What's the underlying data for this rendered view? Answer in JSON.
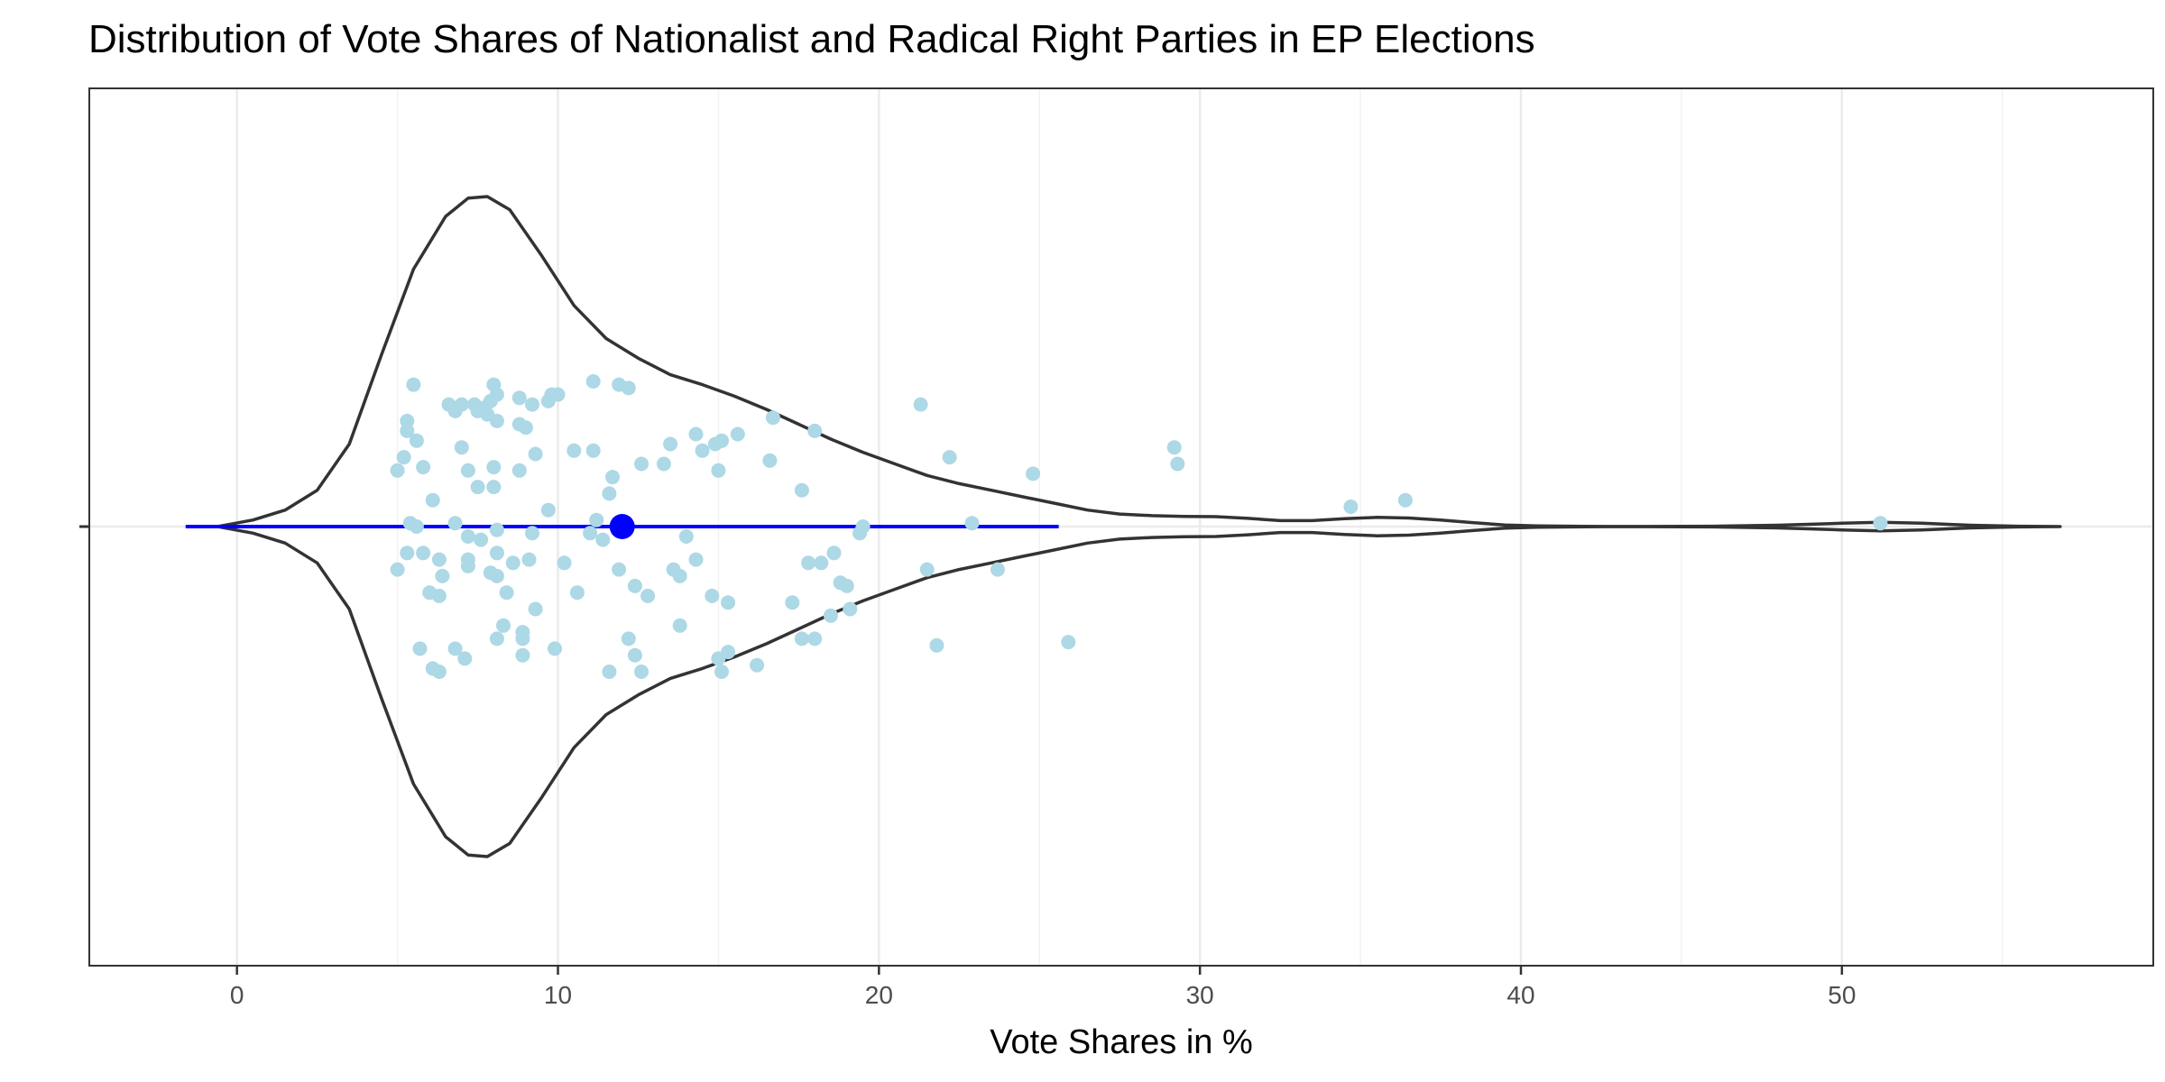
{
  "chart_data": {
    "type": "violin",
    "title": "Distribution of Vote Shares of Nationalist and Radical Right Parties in EP Elections",
    "xlabel": "Vote Shares in %",
    "ylabel": "",
    "xlim": [
      -4.6,
      59.7
    ],
    "x_ticks": [
      0,
      10,
      20,
      30,
      40,
      50
    ],
    "grid": true,
    "colors": {
      "points": "#add8e6",
      "summary": "#0000ff",
      "violin_outline": "#333333",
      "panel_border": "#333333",
      "grid_major": "#ebebeb"
    },
    "summary": {
      "mean": 12.0,
      "interval": [
        -1.6,
        25.6
      ]
    },
    "violin_density": [
      [
        -0.6,
        0.0
      ],
      [
        0.5,
        0.02
      ],
      [
        1.5,
        0.05
      ],
      [
        2.5,
        0.11
      ],
      [
        3.5,
        0.25
      ],
      [
        4.5,
        0.52
      ],
      [
        5.5,
        0.78
      ],
      [
        6.5,
        0.94
      ],
      [
        7.2,
        0.995
      ],
      [
        7.8,
        1.0
      ],
      [
        8.5,
        0.96
      ],
      [
        9.5,
        0.82
      ],
      [
        10.5,
        0.67
      ],
      [
        11.5,
        0.57
      ],
      [
        12.5,
        0.51
      ],
      [
        13.5,
        0.46
      ],
      [
        14.5,
        0.43
      ],
      [
        15.5,
        0.395
      ],
      [
        16.5,
        0.355
      ],
      [
        17.5,
        0.31
      ],
      [
        18.5,
        0.265
      ],
      [
        19.5,
        0.225
      ],
      [
        20.5,
        0.19
      ],
      [
        21.5,
        0.155
      ],
      [
        22.5,
        0.13
      ],
      [
        23.5,
        0.11
      ],
      [
        24.5,
        0.09
      ],
      [
        25.5,
        0.07
      ],
      [
        26.5,
        0.05
      ],
      [
        27.5,
        0.038
      ],
      [
        28.5,
        0.033
      ],
      [
        29.5,
        0.031
      ],
      [
        30.5,
        0.03
      ],
      [
        31.5,
        0.025
      ],
      [
        32.5,
        0.018
      ],
      [
        33.5,
        0.018
      ],
      [
        34.5,
        0.024
      ],
      [
        35.5,
        0.028
      ],
      [
        36.5,
        0.026
      ],
      [
        37.5,
        0.02
      ],
      [
        38.5,
        0.012
      ],
      [
        39.5,
        0.005
      ],
      [
        40.5,
        0.002
      ],
      [
        42.0,
        0.0005
      ],
      [
        44.0,
        0.0003
      ],
      [
        46.0,
        0.001
      ],
      [
        48.0,
        0.004
      ],
      [
        50.0,
        0.01
      ],
      [
        51.2,
        0.013
      ],
      [
        52.5,
        0.01
      ],
      [
        54.0,
        0.004
      ],
      [
        55.5,
        0.001
      ],
      [
        56.8,
        0.0
      ]
    ],
    "points": [
      [
        5.5,
        0.43
      ],
      [
        8.0,
        0.43
      ],
      [
        11.1,
        0.44
      ],
      [
        11.9,
        0.43
      ],
      [
        12.2,
        0.42
      ],
      [
        9.8,
        0.4
      ],
      [
        10.0,
        0.4
      ],
      [
        8.8,
        0.39
      ],
      [
        8.1,
        0.4
      ],
      [
        7.9,
        0.38
      ],
      [
        7.0,
        0.37
      ],
      [
        6.6,
        0.37
      ],
      [
        7.4,
        0.37
      ],
      [
        7.7,
        0.36
      ],
      [
        6.8,
        0.35
      ],
      [
        7.5,
        0.35
      ],
      [
        7.8,
        0.34
      ],
      [
        9.2,
        0.37
      ],
      [
        9.7,
        0.38
      ],
      [
        5.3,
        0.32
      ],
      [
        5.3,
        0.29
      ],
      [
        5.6,
        0.26
      ],
      [
        5.2,
        0.21
      ],
      [
        5.0,
        0.17
      ],
      [
        7.0,
        0.24
      ],
      [
        8.1,
        0.32
      ],
      [
        8.8,
        0.31
      ],
      [
        9.0,
        0.3
      ],
      [
        9.3,
        0.22
      ],
      [
        10.5,
        0.23
      ],
      [
        11.1,
        0.23
      ],
      [
        8.0,
        0.18
      ],
      [
        8.8,
        0.17
      ],
      [
        7.2,
        0.17
      ],
      [
        7.5,
        0.12
      ],
      [
        5.8,
        0.18
      ],
      [
        6.1,
        0.08
      ],
      [
        9.7,
        0.05
      ],
      [
        8.0,
        0.12
      ],
      [
        11.7,
        0.15
      ],
      [
        11.6,
        0.1
      ],
      [
        12.6,
        0.19
      ],
      [
        13.3,
        0.19
      ],
      [
        13.5,
        0.25
      ],
      [
        14.3,
        0.28
      ],
      [
        14.5,
        0.23
      ],
      [
        14.9,
        0.25
      ],
      [
        15.1,
        0.26
      ],
      [
        15.6,
        0.28
      ],
      [
        15.0,
        0.17
      ],
      [
        16.6,
        0.2
      ],
      [
        16.7,
        0.33
      ],
      [
        18.0,
        0.29
      ],
      [
        17.6,
        0.11
      ],
      [
        21.3,
        0.37
      ],
      [
        22.2,
        0.21
      ],
      [
        24.8,
        0.16
      ],
      [
        29.2,
        0.24
      ],
      [
        29.3,
        0.19
      ],
      [
        34.7,
        0.06
      ],
      [
        36.4,
        0.08
      ],
      [
        51.2,
        0.01
      ],
      [
        5.4,
        0.01
      ],
      [
        5.6,
        0.0
      ],
      [
        6.8,
        0.01
      ],
      [
        7.2,
        -0.03
      ],
      [
        7.6,
        -0.04
      ],
      [
        8.1,
        -0.01
      ],
      [
        9.2,
        -0.02
      ],
      [
        11.2,
        0.02
      ],
      [
        11.0,
        -0.02
      ],
      [
        11.4,
        -0.04
      ],
      [
        14.0,
        -0.03
      ],
      [
        19.5,
        0.0
      ],
      [
        19.4,
        -0.02
      ],
      [
        22.9,
        0.01
      ],
      [
        5.3,
        -0.08
      ],
      [
        5.0,
        -0.13
      ],
      [
        5.8,
        -0.08
      ],
      [
        6.3,
        -0.1
      ],
      [
        7.2,
        -0.1
      ],
      [
        7.2,
        -0.12
      ],
      [
        7.9,
        -0.14
      ],
      [
        8.1,
        -0.15
      ],
      [
        8.6,
        -0.11
      ],
      [
        9.1,
        -0.1
      ],
      [
        8.1,
        -0.08
      ],
      [
        10.2,
        -0.11
      ],
      [
        10.6,
        -0.2
      ],
      [
        11.9,
        -0.13
      ],
      [
        12.4,
        -0.18
      ],
      [
        12.8,
        -0.21
      ],
      [
        13.6,
        -0.13
      ],
      [
        13.8,
        -0.15
      ],
      [
        14.3,
        -0.1
      ],
      [
        14.8,
        -0.21
      ],
      [
        15.3,
        -0.23
      ],
      [
        18.2,
        -0.11
      ],
      [
        18.6,
        -0.08
      ],
      [
        17.8,
        -0.11
      ],
      [
        18.8,
        -0.17
      ],
      [
        19.0,
        -0.18
      ],
      [
        19.1,
        -0.25
      ],
      [
        18.5,
        -0.27
      ],
      [
        17.3,
        -0.23
      ],
      [
        21.5,
        -0.13
      ],
      [
        23.7,
        -0.13
      ],
      [
        6.0,
        -0.2
      ],
      [
        6.3,
        -0.21
      ],
      [
        6.4,
        -0.15
      ],
      [
        8.4,
        -0.2
      ],
      [
        9.3,
        -0.25
      ],
      [
        8.3,
        -0.3
      ],
      [
        8.9,
        -0.32
      ],
      [
        8.1,
        -0.34
      ],
      [
        8.9,
        -0.34
      ],
      [
        9.9,
        -0.37
      ],
      [
        7.1,
        -0.4
      ],
      [
        6.8,
        -0.37
      ],
      [
        5.7,
        -0.37
      ],
      [
        6.1,
        -0.43
      ],
      [
        6.3,
        -0.44
      ],
      [
        8.9,
        -0.39
      ],
      [
        12.2,
        -0.34
      ],
      [
        12.4,
        -0.39
      ],
      [
        11.6,
        -0.44
      ],
      [
        12.6,
        -0.44
      ],
      [
        13.8,
        -0.3
      ],
      [
        15.0,
        -0.4
      ],
      [
        15.3,
        -0.38
      ],
      [
        15.1,
        -0.44
      ],
      [
        16.2,
        -0.42
      ],
      [
        17.6,
        -0.34
      ],
      [
        18.0,
        -0.34
      ],
      [
        21.8,
        -0.36
      ],
      [
        25.9,
        -0.35
      ]
    ]
  }
}
